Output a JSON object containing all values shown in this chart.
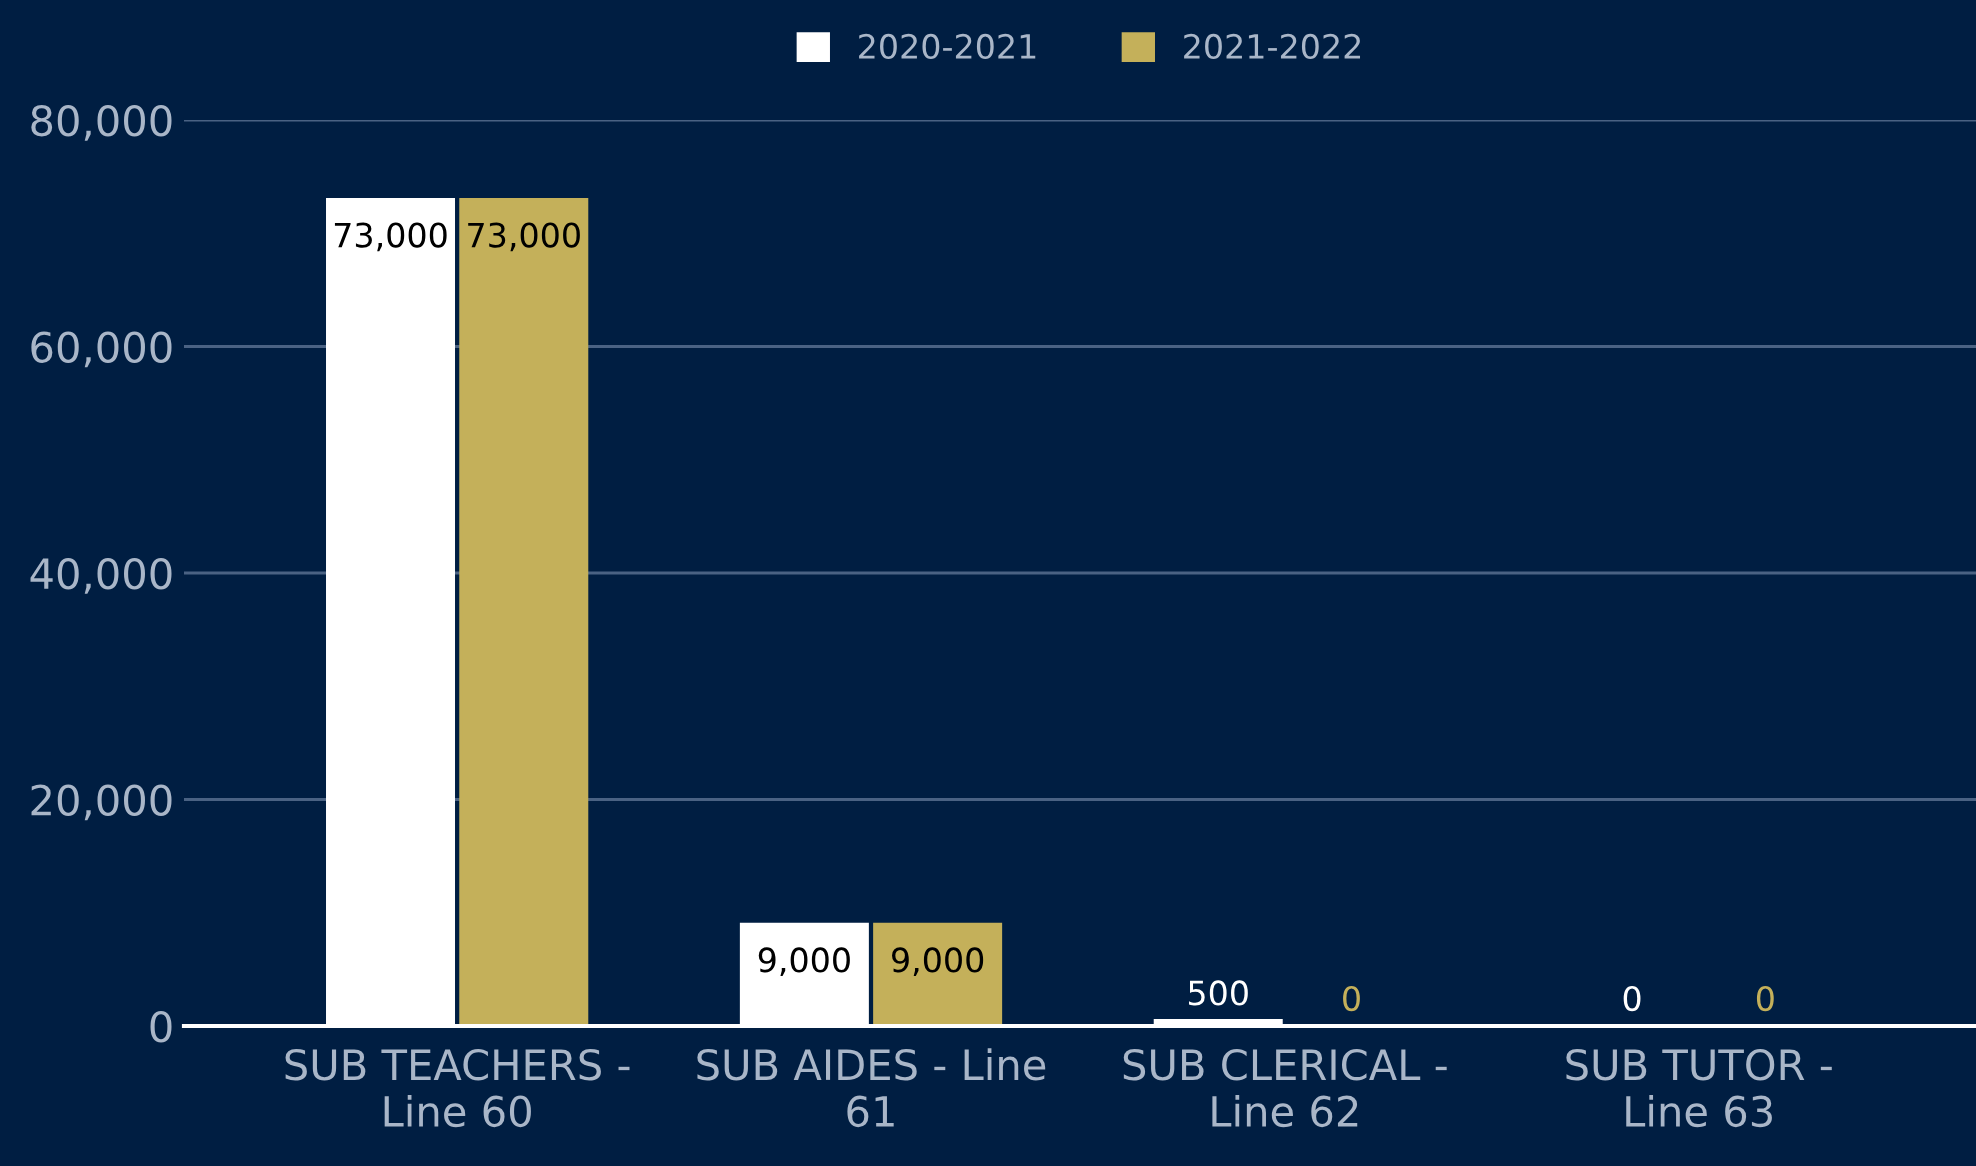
{
  "chart_data": {
    "type": "bar",
    "categories": [
      "SUB TEACHERS -\nLine 60",
      "SUB AIDES - Line\n61",
      "SUB CLERICAL -\nLine 62",
      "SUB TUTOR -\nLine 63"
    ],
    "series": [
      {
        "name": "2020-2021",
        "color": "#ffffff",
        "values": [
          73000,
          9000,
          500,
          0
        ],
        "value_labels": [
          "73,000",
          "9,000",
          "500",
          "0"
        ]
      },
      {
        "name": "2021-2022",
        "color": "#c4b05a",
        "values": [
          73000,
          9000,
          0,
          0
        ],
        "value_labels": [
          "73,000",
          "9,000",
          "0",
          "0"
        ]
      }
    ],
    "ylim": [
      0,
      80000
    ],
    "yticks": [
      {
        "value": 0,
        "label": "0"
      },
      {
        "value": 20000,
        "label": "20,000"
      },
      {
        "value": 40000,
        "label": "40,000"
      },
      {
        "value": 60000,
        "label": "60,000"
      },
      {
        "value": 80000,
        "label": "80,000"
      }
    ],
    "grid": "y",
    "legend": "top"
  }
}
